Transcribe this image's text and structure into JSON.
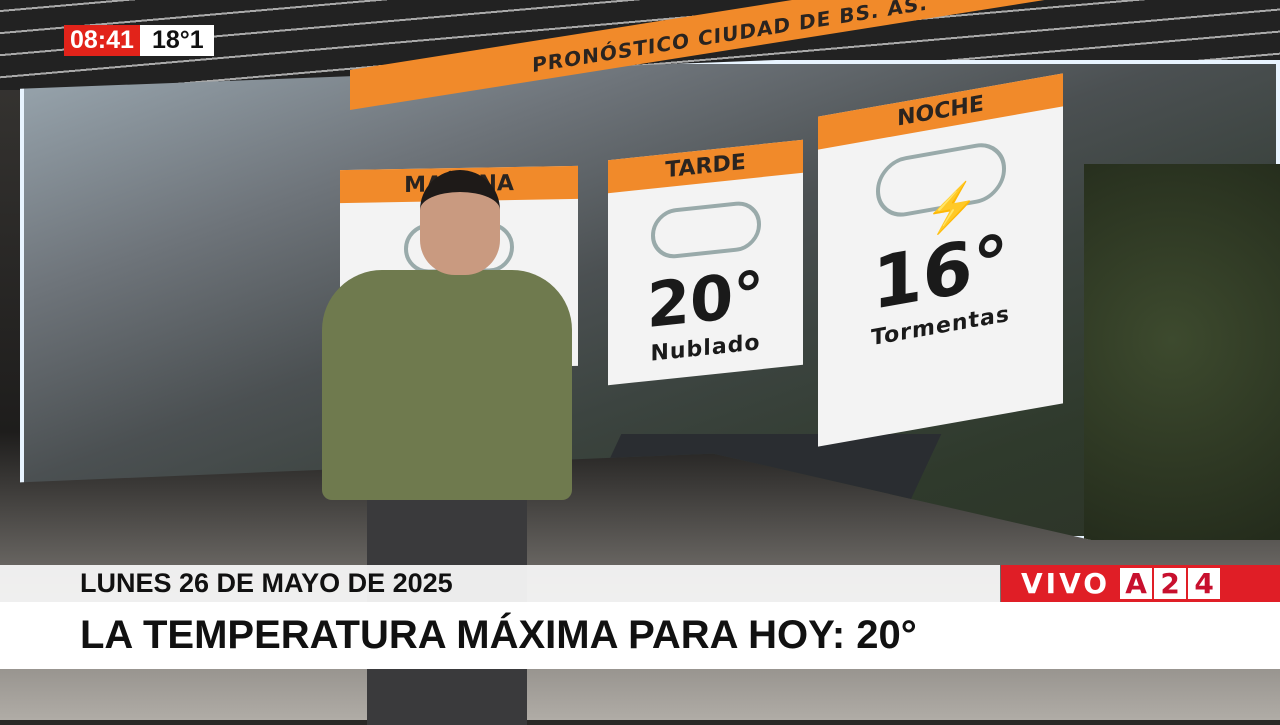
{
  "overlay": {
    "time": "08:41",
    "temperature": "18°1"
  },
  "forecast": {
    "title": "PRONÓSTICO CIUDAD DE BS. AS.",
    "periods": [
      {
        "label": "MAÑANA",
        "icon": "cloud-icon"
      },
      {
        "label": "TARDE",
        "temp": "20°",
        "desc": "Nublado",
        "icon": "cloud-icon"
      },
      {
        "label": "NOCHE",
        "temp": "16°",
        "desc": "Tormentas",
        "icon": "storm-icon"
      }
    ]
  },
  "lower_third": {
    "date": "LUNES 26 DE MAYO DE 2025",
    "headline": "LA TEMPERATURA MÁXIMA PARA HOY: 20°"
  },
  "live": {
    "label": "VIVO",
    "logo": [
      "A",
      "2",
      "4"
    ]
  },
  "colors": {
    "accent": "#f18a2a",
    "live_red": "#e01e26"
  }
}
